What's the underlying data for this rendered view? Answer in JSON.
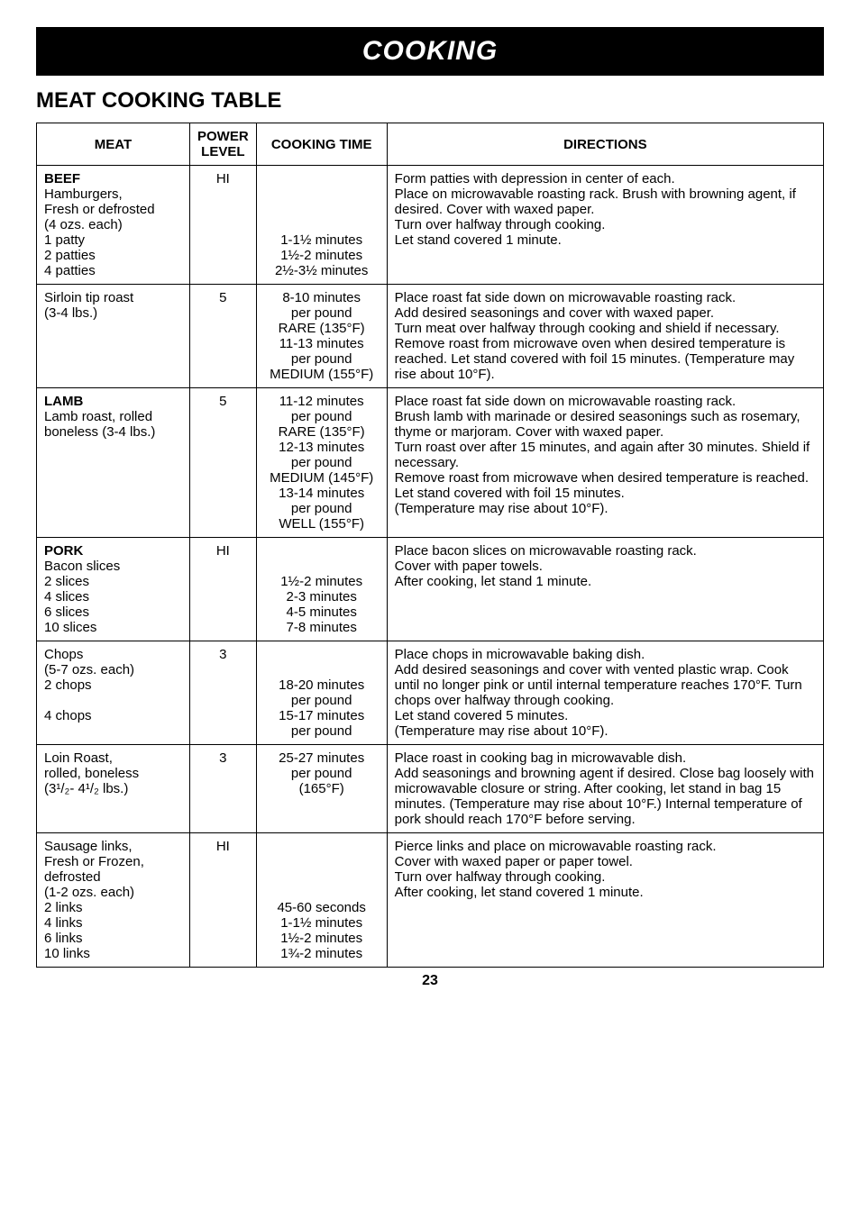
{
  "header": "COOKING",
  "sectionTitle": "MEAT COOKING TABLE",
  "columns": {
    "meat": "MEAT",
    "power": "POWER LEVEL",
    "time": "COOKING TIME",
    "directions": "DIRECTIONS"
  },
  "rows": [
    {
      "meat_bold": "BEEF",
      "meat_rest": "Hamburgers,\nFresh or defrosted\n(4 ozs. each)\n1 patty\n2 patties\n4 patties",
      "power": "HI",
      "time": "\n\n\n\n1-1½ minutes\n1½-2 minutes\n2½-3½ minutes",
      "directions": "Form patties with depression in center of each.\nPlace on microwavable roasting rack. Brush with browning agent, if desired. Cover with waxed paper.\nTurn over halfway through cooking.\nLet stand covered 1 minute."
    },
    {
      "meat_bold": "",
      "meat_rest": "Sirloin tip roast\n(3-4 lbs.)",
      "power": "5",
      "time": "8-10 minutes\nper pound\nRARE (135°F)\n11-13 minutes\nper pound\nMEDIUM (155°F)",
      "directions": "Place roast fat side down on microwavable roasting rack.\nAdd desired seasonings and cover with waxed paper.\nTurn meat over halfway through cooking and shield if necessary. Remove roast from microwave oven when desired temperature is reached. Let stand covered with foil 15 minutes. (Temperature may rise about 10°F)."
    },
    {
      "meat_bold": "LAMB",
      "meat_rest": "Lamb roast, rolled\nboneless (3-4 lbs.)",
      "power": "5",
      "time": "11-12 minutes\nper pound\nRARE (135°F)\n12-13 minutes\nper pound\nMEDIUM (145°F)\n13-14 minutes\nper pound\nWELL (155°F)",
      "directions": "Place roast fat side down on microwavable roasting rack.\nBrush lamb with marinade or desired seasonings such as rosemary, thyme or marjoram. Cover with waxed paper.\nTurn roast over after 15 minutes, and again after 30 minutes. Shield if necessary.\nRemove roast from microwave when desired temperature is reached. Let stand covered with foil 15 minutes.\n(Temperature may rise about 10°F)."
    },
    {
      "meat_bold": "PORK",
      "meat_rest": "Bacon slices\n2 slices\n4 slices\n6 slices\n10 slices",
      "power": "HI",
      "time": "\n\n1½-2 minutes\n2-3 minutes\n4-5 minutes\n7-8 minutes",
      "directions": "Place bacon slices on microwavable roasting rack.\nCover with paper towels.\nAfter cooking, let stand 1 minute."
    },
    {
      "meat_bold": "",
      "meat_rest": "Chops\n(5-7 ozs. each)\n2 chops\n\n4 chops",
      "power": "3",
      "time": "\n\n18-20 minutes\nper pound\n15-17 minutes\nper pound",
      "directions": "Place chops in microwavable baking dish.\nAdd desired seasonings and cover with vented plastic wrap. Cook until no longer pink or until internal temperature reaches 170°F. Turn chops over halfway through cooking.\nLet stand covered 5 minutes.\n(Temperature may rise about 10°F)."
    },
    {
      "meat_bold": "",
      "meat_rest": "Loin Roast,\nrolled, boneless\n(3¹/₂- 4¹/₂ lbs.)",
      "power": "3",
      "time": "25-27 minutes\nper pound\n(165°F)",
      "directions": "Place roast in cooking bag in microwavable dish.\nAdd seasonings and browning agent if desired. Close bag loosely with microwavable closure or string. After cooking, let stand in bag 15 minutes. (Temperature may rise about 10°F.) Internal temperature of pork should reach 170°F before serving."
    },
    {
      "meat_bold": "",
      "meat_rest": "Sausage links,\nFresh or Frozen,\ndefrosted\n(1-2 ozs. each)\n2 links\n4 links\n6 links\n10 links",
      "power": "HI",
      "time": "\n\n\n\n45-60 seconds\n1-1½ minutes\n1½-2 minutes\n1¾-2 minutes",
      "directions": "Pierce links and place on microwavable roasting rack.\nCover with waxed paper or paper towel.\nTurn over halfway through cooking.\nAfter cooking, let stand covered 1 minute."
    }
  ],
  "pageNumber": "23"
}
